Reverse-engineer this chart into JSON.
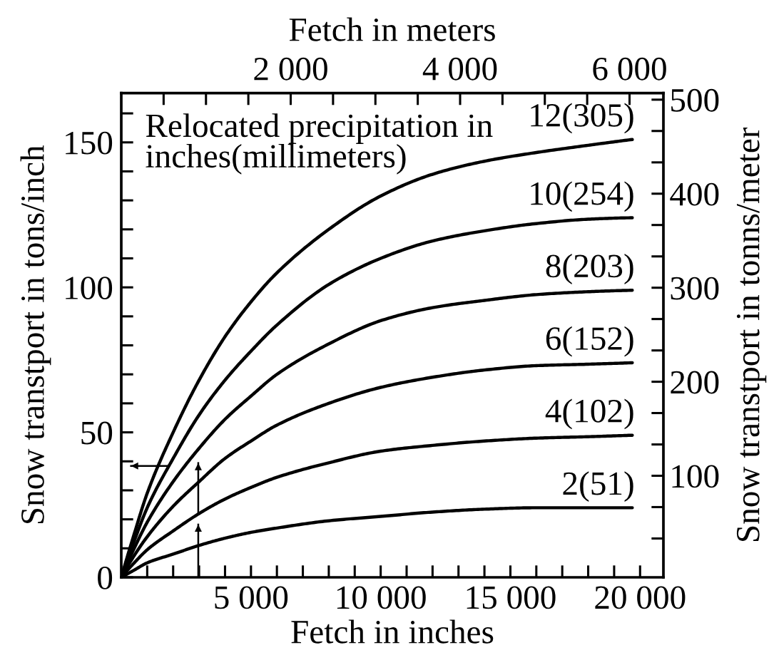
{
  "chart_data": {
    "type": "line",
    "xlabel": "Fetch in inches",
    "x2label": "Fetch in meters",
    "ylabel": "Snow transtport in tons/inch",
    "y2label": "Snow transtport in tonns/meter",
    "annotations": [
      "Relocated precipitation in\ninches(millimeters)"
    ],
    "xlim": [
      0,
      20900
    ],
    "xticks": [
      {
        "value": 1000,
        "label": null
      },
      {
        "value": 2000,
        "label": null
      },
      {
        "value": 3000,
        "label": null
      },
      {
        "value": 4000,
        "label": null
      },
      {
        "value": 5000,
        "label": "5 000"
      },
      {
        "value": 6000,
        "label": null
      },
      {
        "value": 7000,
        "label": null
      },
      {
        "value": 8000,
        "label": null
      },
      {
        "value": 9000,
        "label": null
      },
      {
        "value": 10000,
        "label": "10 000"
      },
      {
        "value": 11000,
        "label": null
      },
      {
        "value": 12000,
        "label": null
      },
      {
        "value": 13000,
        "label": null
      },
      {
        "value": 14000,
        "label": null
      },
      {
        "value": 15000,
        "label": "15 000"
      },
      {
        "value": 16000,
        "label": null
      },
      {
        "value": 17000,
        "label": null
      },
      {
        "value": 18000,
        "label": null
      },
      {
        "value": 19000,
        "label": null
      },
      {
        "value": 20000,
        "label": "20 000"
      }
    ],
    "x2lim": [
      0,
      6400
    ],
    "x2ticks": [
      {
        "value": 500,
        "label": null
      },
      {
        "value": 1000,
        "label": null
      },
      {
        "value": 1500,
        "label": null
      },
      {
        "value": 2000,
        "label": "2 000"
      },
      {
        "value": 2500,
        "label": null
      },
      {
        "value": 3000,
        "label": null
      },
      {
        "value": 3500,
        "label": null
      },
      {
        "value": 4000,
        "label": "4 000"
      },
      {
        "value": 4500,
        "label": null
      },
      {
        "value": 5000,
        "label": null
      },
      {
        "value": 5500,
        "label": null
      },
      {
        "value": 6000,
        "label": "6 000"
      }
    ],
    "ylim": [
      0,
      167
    ],
    "yticks": [
      0,
      {
        "value": 10,
        "label": null
      },
      {
        "value": 20,
        "label": null
      },
      {
        "value": 30,
        "label": null
      },
      {
        "value": 40,
        "label": null
      },
      50,
      {
        "value": 60,
        "label": null
      },
      {
        "value": 70,
        "label": null
      },
      {
        "value": 80,
        "label": null
      },
      {
        "value": 90,
        "label": null
      },
      100,
      {
        "value": 110,
        "label": null
      },
      {
        "value": 120,
        "label": null
      },
      {
        "value": 130,
        "label": null
      },
      {
        "value": 140,
        "label": null
      },
      150,
      {
        "value": 160,
        "label": null
      }
    ],
    "y2lim": [
      -8,
      507
    ],
    "y2ticks": [
      {
        "value": 33.3,
        "label": null
      },
      {
        "value": 66.7,
        "label": null
      },
      100,
      {
        "value": 133.3,
        "label": null
      },
      {
        "value": 166.7,
        "label": null
      },
      200,
      {
        "value": 233.3,
        "label": null
      },
      {
        "value": 266.7,
        "label": null
      },
      300,
      {
        "value": 333.3,
        "label": null
      },
      {
        "value": 366.7,
        "label": null
      },
      400,
      {
        "value": 433.3,
        "label": null
      },
      {
        "value": 466.7,
        "label": null
      },
      500
    ],
    "line_style": "solid",
    "x": [
      0,
      500,
      1000,
      2000,
      3000,
      4000,
      5000,
      6000,
      8000,
      10000,
      12000,
      14000,
      16000,
      18000,
      19700
    ],
    "series": [
      {
        "name": "12(305)",
        "color": "#000000",
        "values": [
          0,
          15,
          29,
          50,
          68,
          83,
          95,
          105,
          120,
          131.5,
          139,
          143.5,
          146.5,
          149,
          151
        ]
      },
      {
        "name": "10(254)",
        "color": "#000000",
        "values": [
          0,
          12.5,
          24,
          41,
          56,
          68,
          78,
          87,
          101,
          110,
          116,
          119.5,
          122,
          123.5,
          124
        ]
      },
      {
        "name": "8(203)",
        "color": "#000000",
        "values": [
          0,
          10,
          19,
          33,
          44.5,
          54.5,
          62.5,
          70,
          80.5,
          88.5,
          93,
          95.5,
          97.5,
          98.5,
          99
        ]
      },
      {
        "name": "6(152)",
        "color": "#000000",
        "values": [
          0,
          7.5,
          14,
          24.5,
          33,
          41,
          47,
          52.5,
          60,
          65.5,
          69,
          71.5,
          73,
          73.5,
          74
        ]
      },
      {
        "name": "4(102)",
        "color": "#000000",
        "values": [
          0,
          5,
          9.5,
          16,
          22,
          27,
          31,
          34.5,
          39.5,
          43.5,
          45.5,
          47,
          48,
          48.5,
          49
        ]
      },
      {
        "name": "2(51)",
        "color": "#000000",
        "values": [
          0,
          2.5,
          5,
          8,
          11,
          13.5,
          15.5,
          17,
          19.5,
          21,
          22.5,
          23.5,
          24,
          24,
          24
        ]
      }
    ]
  }
}
